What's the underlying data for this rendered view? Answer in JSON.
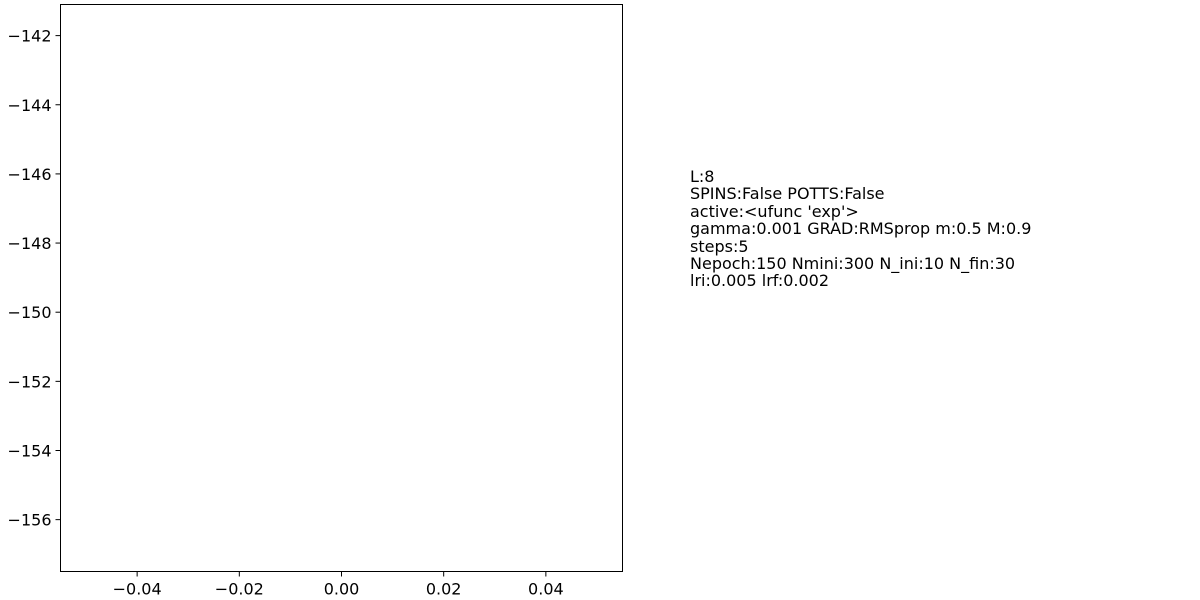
{
  "chart_data": {
    "type": "line",
    "title": "",
    "xlabel": "",
    "ylabel": "",
    "xlim": [
      -0.055,
      0.055
    ],
    "ylim": [
      -157.5,
      -141.1
    ],
    "x_ticks": [
      -0.04,
      -0.02,
      0.0,
      0.02,
      0.04
    ],
    "x_tick_labels": [
      "−0.04",
      "−0.02",
      "0.00",
      "0.02",
      "0.04"
    ],
    "y_ticks": [
      -142,
      -144,
      -146,
      -148,
      -150,
      -152,
      -154,
      -156
    ],
    "y_tick_labels": [
      "−142",
      "−144",
      "−146",
      "−148",
      "−150",
      "−152",
      "−154",
      "−156"
    ],
    "grid": false,
    "series": []
  },
  "info_text": [
    "L:8",
    "SPINS:False POTTS:False",
    "active:<ufunc 'exp'>",
    "gamma:0.001 GRAD:RMSprop m:0.5 M:0.9",
    "steps:5",
    "Nepoch:150 Nmini:300 N_ini:10 N_fin:30",
    "lri:0.005 lrf:0.002"
  ]
}
